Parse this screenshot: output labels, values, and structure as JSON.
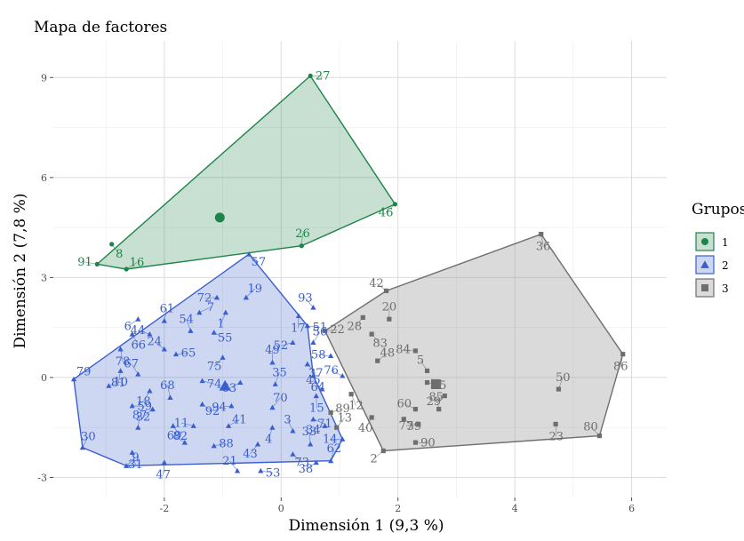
{
  "chart_data": {
    "type": "scatter",
    "title": "Mapa de factores",
    "xlabel": "Dimensión 1 (9,3 %)",
    "ylabel": "Dimensión 2 (7,8 %)",
    "xlim": [
      -3.9,
      6.6
    ],
    "ylim": [
      -3.6,
      10.1
    ],
    "x_ticks": [
      -2,
      0,
      2,
      4,
      6
    ],
    "y_ticks": [
      -3,
      0,
      3,
      6,
      9
    ],
    "grid": true,
    "legend": {
      "title": "Grupos",
      "position": "right"
    },
    "series": [
      {
        "name": "1",
        "color": "#1e8449",
        "marker": "circle",
        "hull": [
          "91",
          "16",
          "26",
          "46",
          "27"
        ],
        "centroid": [
          -1.05,
          4.8
        ],
        "points": [
          {
            "label": "27",
            "x": 0.5,
            "y": 9.05
          },
          {
            "label": "46",
            "x": 1.95,
            "y": 5.2
          },
          {
            "label": "26",
            "x": 0.35,
            "y": 3.95
          },
          {
            "label": "8",
            "x": -2.9,
            "y": 4.0
          },
          {
            "label": "91",
            "x": -3.15,
            "y": 3.4
          },
          {
            "label": "16",
            "x": -2.65,
            "y": 3.25
          }
        ]
      },
      {
        "name": "2",
        "color": "#3a5fcd",
        "marker": "triangle",
        "hull": [
          "79",
          "30",
          "9",
          "62",
          "14",
          "64",
          "51",
          "57"
        ],
        "centroid": [
          -0.96,
          -0.25
        ],
        "points": [
          {
            "label": "57",
            "x": -0.55,
            "y": 3.7
          },
          {
            "label": "72",
            "x": -1.1,
            "y": 2.4
          },
          {
            "label": "19",
            "x": -0.6,
            "y": 2.4
          },
          {
            "label": "17",
            "x": 0.3,
            "y": 1.85
          },
          {
            "label": "93",
            "x": 0.55,
            "y": 2.1
          },
          {
            "label": "51",
            "x": 0.45,
            "y": 1.55
          },
          {
            "label": "6",
            "x": -2.45,
            "y": 1.75
          },
          {
            "label": "61",
            "x": -2.0,
            "y": 1.7
          },
          {
            "label": "66",
            "x": -2.55,
            "y": 1.3
          },
          {
            "label": "44",
            "x": -2.25,
            "y": 1.3
          },
          {
            "label": "7",
            "x": -1.4,
            "y": 1.95
          },
          {
            "label": "1",
            "x": -0.95,
            "y": 1.95
          },
          {
            "label": "54",
            "x": -1.55,
            "y": 1.4
          },
          {
            "label": "55",
            "x": -1.15,
            "y": 1.35
          },
          {
            "label": "52",
            "x": 0.2,
            "y": 1.05
          },
          {
            "label": "56",
            "x": 0.55,
            "y": 1.05
          },
          {
            "label": "78",
            "x": -2.75,
            "y": 0.85
          },
          {
            "label": "24",
            "x": -2.0,
            "y": 0.85
          },
          {
            "label": "65",
            "x": -1.8,
            "y": 0.7
          },
          {
            "label": "75",
            "x": -1.0,
            "y": 0.6
          },
          {
            "label": "49",
            "x": -0.15,
            "y": 0.45
          },
          {
            "label": "37",
            "x": 0.45,
            "y": 0.4
          },
          {
            "label": "58",
            "x": 0.85,
            "y": 0.65
          },
          {
            "label": "79",
            "x": -3.55,
            "y": -0.05
          },
          {
            "label": "81",
            "x": -2.75,
            "y": 0.2
          },
          {
            "label": "67",
            "x": -2.45,
            "y": 0.1
          },
          {
            "label": "74",
            "x": -1.35,
            "y": -0.1
          },
          {
            "label": "63",
            "x": -0.7,
            "y": -0.15
          },
          {
            "label": "35",
            "x": -0.1,
            "y": -0.2
          },
          {
            "label": "64",
            "x": 0.55,
            "y": 0.05
          },
          {
            "label": "76",
            "x": 1.05,
            "y": 0.05
          },
          {
            "label": "10",
            "x": -2.95,
            "y": -0.25
          },
          {
            "label": "18",
            "x": -2.25,
            "y": -0.4
          },
          {
            "label": "68",
            "x": -1.9,
            "y": -0.6
          },
          {
            "label": "92",
            "x": -1.35,
            "y": -0.8
          },
          {
            "label": "94",
            "x": -0.85,
            "y": -0.85
          },
          {
            "label": "70",
            "x": -0.15,
            "y": -0.9
          },
          {
            "label": "15",
            "x": 0.6,
            "y": -0.55
          },
          {
            "label": "45",
            "x": 0.7,
            "y": -0.35
          },
          {
            "label": "59",
            "x": -2.55,
            "y": -0.85
          },
          {
            "label": "32",
            "x": -2.2,
            "y": -0.95
          },
          {
            "label": "87",
            "x": -2.45,
            "y": -1.5
          },
          {
            "label": "82",
            "x": -1.85,
            "y": -1.45
          },
          {
            "label": "11",
            "x": -1.5,
            "y": -1.45
          },
          {
            "label": "41",
            "x": -0.9,
            "y": -1.45
          },
          {
            "label": "4",
            "x": -0.15,
            "y": -1.5
          },
          {
            "label": "3",
            "x": 0.2,
            "y": -1.6
          },
          {
            "label": "71",
            "x": 0.55,
            "y": -1.25
          },
          {
            "label": "34",
            "x": 0.75,
            "y": -1.45
          },
          {
            "label": "30",
            "x": -3.4,
            "y": -2.1
          },
          {
            "label": "31",
            "x": -2.55,
            "y": -2.25
          },
          {
            "label": "69",
            "x": -1.65,
            "y": -1.95
          },
          {
            "label": "88",
            "x": -1.15,
            "y": -2.05
          },
          {
            "label": "43",
            "x": -0.4,
            "y": -2.0
          },
          {
            "label": "33",
            "x": 0.5,
            "y": -2.0
          },
          {
            "label": "73",
            "x": 0.2,
            "y": -2.3
          },
          {
            "label": "14",
            "x": 1.05,
            "y": -1.85
          },
          {
            "label": "9",
            "x": -2.65,
            "y": -2.65
          },
          {
            "label": "47",
            "x": -2.0,
            "y": -2.55
          },
          {
            "label": "21",
            "x": -0.75,
            "y": -2.8
          },
          {
            "label": "53",
            "x": -0.35,
            "y": -2.8
          },
          {
            "label": "38",
            "x": 0.6,
            "y": -2.55
          },
          {
            "label": "62",
            "x": 0.85,
            "y": -2.5
          }
        ]
      },
      {
        "name": "3",
        "color": "#6e6e6e",
        "marker": "square",
        "hull": [
          "22",
          "2",
          "80",
          "86",
          "36",
          "42"
        ],
        "centroid": [
          2.65,
          -0.2
        ],
        "points": [
          {
            "label": "36",
            "x": 4.45,
            "y": 4.3
          },
          {
            "label": "42",
            "x": 1.8,
            "y": 2.6
          },
          {
            "label": "22",
            "x": 0.75,
            "y": 1.4
          },
          {
            "label": "28",
            "x": 1.4,
            "y": 1.8
          },
          {
            "label": "20",
            "x": 1.85,
            "y": 1.75
          },
          {
            "label": "83",
            "x": 1.55,
            "y": 1.3
          },
          {
            "label": "84",
            "x": 2.3,
            "y": 0.8
          },
          {
            "label": "48",
            "x": 1.65,
            "y": 0.5
          },
          {
            "label": "86",
            "x": 5.85,
            "y": 0.7
          },
          {
            "label": "5",
            "x": 2.5,
            "y": 0.2
          },
          {
            "label": "25",
            "x": 2.5,
            "y": -0.15
          },
          {
            "label": "29",
            "x": 2.8,
            "y": -0.55
          },
          {
            "label": "50",
            "x": 4.75,
            "y": -0.35
          },
          {
            "label": "12",
            "x": 1.2,
            "y": -0.5
          },
          {
            "label": "60",
            "x": 2.3,
            "y": -0.95
          },
          {
            "label": "89",
            "x": 0.85,
            "y": -1.05
          },
          {
            "label": "40",
            "x": 1.55,
            "y": -1.2
          },
          {
            "label": "85",
            "x": 2.7,
            "y": -0.95
          },
          {
            "label": "39",
            "x": 2.1,
            "y": -1.25
          },
          {
            "label": "77",
            "x": 2.35,
            "y": -1.4
          },
          {
            "label": "13",
            "x": 0.95,
            "y": -1.5
          },
          {
            "label": "23",
            "x": 4.7,
            "y": -1.4
          },
          {
            "label": "80",
            "x": 5.45,
            "y": -1.75
          },
          {
            "label": "90",
            "x": 2.3,
            "y": -1.95
          },
          {
            "label": "2",
            "x": 1.75,
            "y": -2.2
          }
        ]
      }
    ]
  }
}
